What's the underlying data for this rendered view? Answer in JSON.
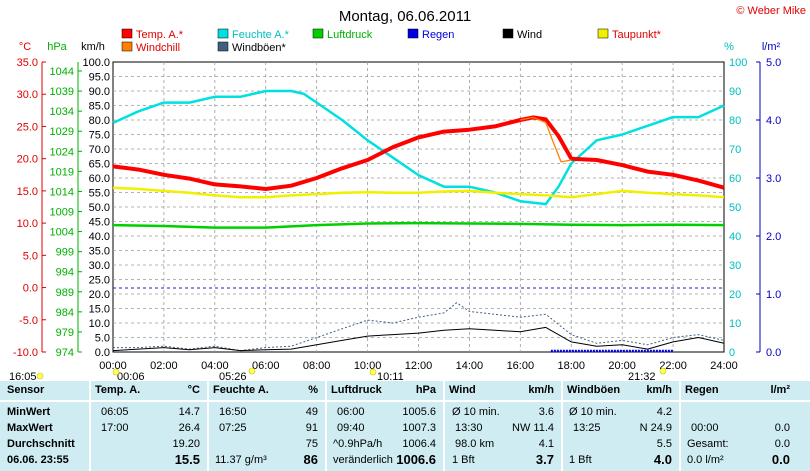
{
  "copyright": "© Weber Mike",
  "chart_data": {
    "type": "line",
    "title": "Montag, 06.06.2011",
    "legend": [
      {
        "name": "Temp. A.*",
        "color": "#ff0000"
      },
      {
        "name": "Feuchte A.*",
        "color": "#00e0e0"
      },
      {
        "name": "Luftdruck",
        "color": "#00d000"
      },
      {
        "name": "Regen",
        "color": "#0000e0"
      },
      {
        "name": "Wind",
        "color": "#000000"
      },
      {
        "name": "Taupunkt*",
        "color": "#f0f000"
      },
      {
        "name": "Windchill",
        "color": "#ff8000"
      },
      {
        "name": "Windböen*",
        "color": "#406080"
      }
    ],
    "axis_units": {
      "temp": "°C",
      "pressure": "hPa",
      "wind": "km/h",
      "humidity": "%",
      "rain": "l/m²"
    },
    "temp_ticks": [
      "35.0",
      "30.0",
      "25.0",
      "20.0",
      "15.0",
      "10.0",
      "5.0",
      "0.0",
      "-5.0",
      "-10.0"
    ],
    "pressure_ticks": [
      "1044",
      "1039",
      "1034",
      "1029",
      "1024",
      "1019",
      "1014",
      "1009",
      "1004",
      "999",
      "994",
      "989",
      "984",
      "979",
      "974"
    ],
    "wind_ticks": [
      "100.0",
      "95.0",
      "90.0",
      "85.0",
      "80.0",
      "75.0",
      "70.0",
      "65.0",
      "60.0",
      "55.0",
      "50.0",
      "45.0",
      "40.0",
      "35.0",
      "30.0",
      "25.0",
      "20.0",
      "15.0",
      "10.0",
      "5.0",
      "0.0"
    ],
    "humidity_ticks": [
      "100",
      "90",
      "80",
      "70",
      "60",
      "50",
      "40",
      "30",
      "20",
      "10",
      "0"
    ],
    "rain_ticks": [
      "5.0",
      "4.0",
      "3.0",
      "2.0",
      "1.0",
      "0.0"
    ],
    "x_ticks": [
      "00:00",
      "02:00",
      "04:00",
      "06:00",
      "08:00",
      "10:00",
      "12:00",
      "14:00",
      "16:00",
      "18:00",
      "20:00",
      "22:00",
      "24:00"
    ],
    "xlim": [
      0,
      24
    ],
    "temp_ylim": [
      -10,
      35
    ],
    "humidity_ylim": [
      0,
      100
    ],
    "wind_ylim": [
      0,
      100
    ],
    "grid": true,
    "series": [
      {
        "name": "Temp. A.*",
        "unit": "°C",
        "color": "#ff0000",
        "x": [
          0,
          1,
          2,
          3,
          4,
          5,
          6,
          7,
          8,
          9,
          10,
          11,
          12,
          13,
          14,
          15,
          16,
          16.5,
          17,
          17.5,
          18,
          19,
          20,
          21,
          22,
          23,
          24
        ],
        "y": [
          18.8,
          18.3,
          17.5,
          16.9,
          16.0,
          15.7,
          15.3,
          15.8,
          17.0,
          18.5,
          19.8,
          21.8,
          23.3,
          24.2,
          24.5,
          25.0,
          26.0,
          26.4,
          26.1,
          23.5,
          20.0,
          19.8,
          19.0,
          18.0,
          17.5,
          16.6,
          15.5
        ]
      },
      {
        "name": "Feuchte A.*",
        "unit": "%",
        "color": "#00e0e0",
        "x": [
          0,
          1,
          2,
          3,
          4,
          5,
          6,
          7,
          7.5,
          8,
          9,
          10,
          11,
          12,
          13,
          14,
          15,
          16,
          17,
          17.5,
          18,
          19,
          20,
          21,
          22,
          23,
          24
        ],
        "y": [
          79,
          83,
          86,
          86,
          88,
          88,
          90,
          90,
          89,
          86,
          80,
          73,
          67,
          61,
          57,
          57,
          55,
          52,
          51,
          57,
          65,
          73,
          75,
          78,
          81,
          81,
          85
        ]
      },
      {
        "name": "Taupunkt*",
        "unit": "°C",
        "color": "#f0f000",
        "x": [
          0,
          1,
          2,
          3,
          4,
          5,
          6,
          7,
          8,
          9,
          10,
          11,
          12,
          13,
          14,
          15,
          16,
          17,
          18,
          19,
          20,
          21,
          22,
          23,
          24
        ],
        "y": [
          15.5,
          15.3,
          15.0,
          14.7,
          14.3,
          14.0,
          14.0,
          14.3,
          14.5,
          14.7,
          14.8,
          14.7,
          14.7,
          14.9,
          15.0,
          14.7,
          14.5,
          14.3,
          14.0,
          14.5,
          15.0,
          14.7,
          14.5,
          14.3,
          14.0
        ]
      },
      {
        "name": "Luftdruck",
        "unit": "hPa",
        "color": "#00d000",
        "x": [
          0,
          2,
          4,
          6,
          8,
          10,
          12,
          14,
          16,
          18,
          20,
          22,
          24
        ],
        "y": [
          1005.6,
          1005.4,
          1005.0,
          1005.0,
          1005.6,
          1006.0,
          1006.1,
          1006.0,
          1005.9,
          1005.7,
          1005.6,
          1005.7,
          1005.6
        ]
      },
      {
        "name": "Windchill",
        "unit": "°C",
        "color": "#ff8000",
        "x": [
          16,
          16.5,
          17,
          17.3,
          17.6,
          18
        ],
        "y": [
          26.0,
          26.4,
          25.6,
          22.5,
          19.5,
          19.8
        ]
      },
      {
        "name": "Wind",
        "unit": "km/h",
        "color": "#000000",
        "x": [
          0,
          1,
          2,
          3,
          4,
          5,
          6,
          7,
          8,
          9,
          10,
          11,
          12,
          13,
          14,
          15,
          16,
          17,
          18,
          19,
          20,
          21,
          22,
          23,
          24
        ],
        "y": [
          0.5,
          1.0,
          1.5,
          0.8,
          1.5,
          0.5,
          0.8,
          1.0,
          2.5,
          4.0,
          5.5,
          6.0,
          6.5,
          7.5,
          8.0,
          7.5,
          7.0,
          8.5,
          3.5,
          2.0,
          2.5,
          1.0,
          3.5,
          5.0,
          3.0
        ]
      },
      {
        "name": "Windböen*",
        "unit": "km/h",
        "color": "#406080",
        "x": [
          0,
          1,
          2,
          3,
          4,
          5,
          6,
          7,
          8,
          9,
          10,
          11,
          12,
          13,
          13.5,
          14,
          15,
          16,
          17,
          18,
          19,
          20,
          21,
          22,
          23,
          24
        ],
        "y": [
          1.5,
          1.5,
          2.0,
          1.0,
          2.0,
          0.5,
          1.5,
          2.0,
          5.0,
          8.0,
          11.0,
          10.0,
          12.0,
          13.5,
          17.0,
          14.0,
          13.0,
          12.0,
          13.0,
          6.0,
          3.0,
          4.0,
          2.5,
          5.0,
          6.0,
          4.0
        ]
      }
    ],
    "markers_below_axis": [
      {
        "label": "16:05"
      },
      {
        "label": "00:06"
      },
      {
        "label": "05:26"
      },
      {
        "label": "10:11"
      },
      {
        "label": "21:32"
      }
    ]
  },
  "summary_table": {
    "sensor": {
      "header": "Sensor",
      "rows": [
        "MinWert",
        "MaxWert",
        "Durchschnitt",
        "06.06. 23:55"
      ]
    },
    "temp": {
      "header": "Temp. A.",
      "unit": "°C",
      "times": [
        "06:05",
        "17:00",
        "",
        ""
      ],
      "values": [
        "14.7",
        "26.4",
        "19.20",
        "15.5"
      ]
    },
    "humidity": {
      "header": "Feuchte A.",
      "unit": "%",
      "times": [
        "16:50",
        "07:25",
        "",
        "11.37 g/m³"
      ],
      "values": [
        "49",
        "91",
        "75",
        "86"
      ]
    },
    "pressure": {
      "header": "Luftdruck",
      "unit": "hPa",
      "times": [
        "06:00",
        "09:40",
        "^0.9hPa/h",
        "veränderlich"
      ],
      "values": [
        "1005.6",
        "1007.3",
        "1006.4",
        "1006.6"
      ]
    },
    "wind": {
      "header": "Wind",
      "unit": "km/h",
      "times": [
        "Ø 10 min.",
        "13:30",
        "98.0 km",
        "1 Bft"
      ],
      "mid": [
        "",
        "NW 11.4",
        "",
        ""
      ],
      "values": [
        "3.6",
        "",
        "4.1",
        "3.7"
      ]
    },
    "gusts": {
      "header": "Windböen",
      "unit": "km/h",
      "times": [
        "Ø 10 min.",
        "13:25",
        "",
        "1 Bft"
      ],
      "mid": [
        "",
        "N 24.9",
        "",
        ""
      ],
      "values": [
        "4.2",
        "",
        "5.5",
        "4.0"
      ]
    },
    "rain": {
      "header": "Regen",
      "unit": "l/m²",
      "times": [
        "",
        "00:00",
        "Gesamt:",
        "0.0 l/m²"
      ],
      "values": [
        "",
        "0.0",
        "0.0",
        "0.0"
      ]
    }
  }
}
